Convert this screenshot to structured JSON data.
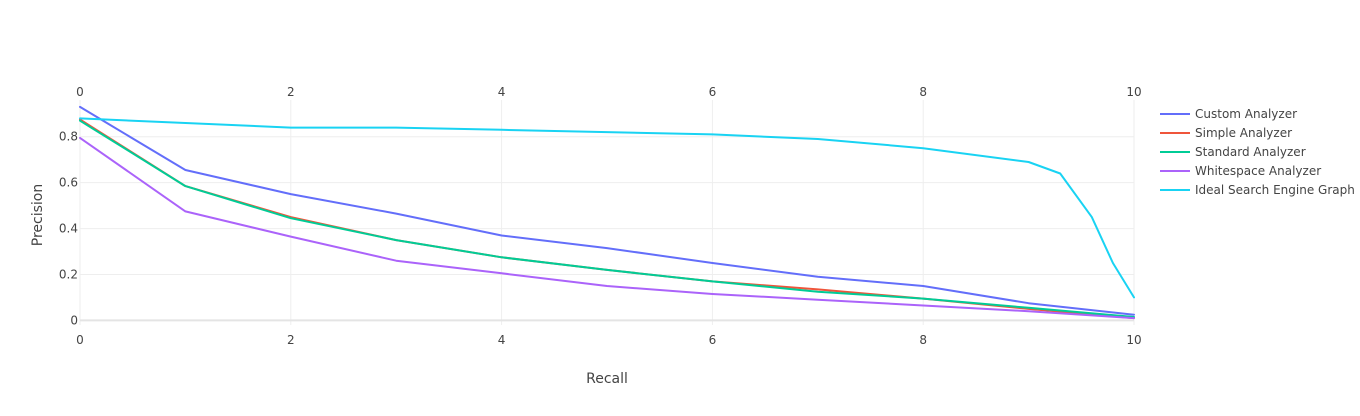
{
  "chart_data": {
    "type": "line",
    "title": "",
    "xlabel": "Recall",
    "ylabel": "Precision",
    "xlim": [
      0,
      10
    ],
    "ylim": [
      -0.02,
      0.96
    ],
    "x_ticks": [
      0,
      2,
      4,
      6,
      8,
      10
    ],
    "x_tick_labels": [
      "0",
      "2",
      "4",
      "6",
      "8",
      "10"
    ],
    "y_ticks": [
      0,
      0.2,
      0.4,
      0.6,
      0.8
    ],
    "y_tick_labels": [
      "0",
      "0.2",
      "0.4",
      "0.6",
      "0.8"
    ],
    "x_axis_mirrored_top": true,
    "grid": true,
    "legend_position": "right",
    "series": [
      {
        "name": "Custom Analyzer",
        "color": "#636efa",
        "x": [
          0,
          1,
          2,
          3,
          4,
          5,
          6,
          7,
          8,
          9,
          10
        ],
        "y": [
          0.93,
          0.655,
          0.55,
          0.465,
          0.37,
          0.315,
          0.25,
          0.19,
          0.15,
          0.075,
          0.025
        ]
      },
      {
        "name": "Simple Analyzer",
        "color": "#ef553b",
        "x": [
          0,
          1,
          2,
          3,
          4,
          5,
          6,
          7,
          8,
          9,
          10
        ],
        "y": [
          0.875,
          0.585,
          0.45,
          0.35,
          0.275,
          0.22,
          0.17,
          0.135,
          0.095,
          0.05,
          0.01
        ]
      },
      {
        "name": "Standard Analyzer",
        "color": "#00cc96",
        "x": [
          0,
          1,
          2,
          3,
          4,
          5,
          6,
          7,
          8,
          9,
          10
        ],
        "y": [
          0.87,
          0.585,
          0.445,
          0.35,
          0.275,
          0.22,
          0.17,
          0.125,
          0.095,
          0.055,
          0.015
        ]
      },
      {
        "name": "Whitespace Analyzer",
        "color": "#ab63fa",
        "x": [
          0,
          1,
          2,
          3,
          4,
          5,
          6,
          7,
          8,
          9,
          10
        ],
        "y": [
          0.795,
          0.475,
          0.365,
          0.26,
          0.205,
          0.15,
          0.115,
          0.09,
          0.065,
          0.04,
          0.01
        ]
      },
      {
        "name": "Ideal Search Engine Graph",
        "color": "#19d3f3",
        "x": [
          0,
          1,
          2,
          3,
          4,
          5,
          6,
          7,
          8,
          9,
          9.3,
          9.6,
          9.8,
          10
        ],
        "y": [
          0.88,
          0.86,
          0.84,
          0.84,
          0.83,
          0.82,
          0.81,
          0.79,
          0.75,
          0.69,
          0.64,
          0.45,
          0.25,
          0.1
        ]
      }
    ]
  }
}
